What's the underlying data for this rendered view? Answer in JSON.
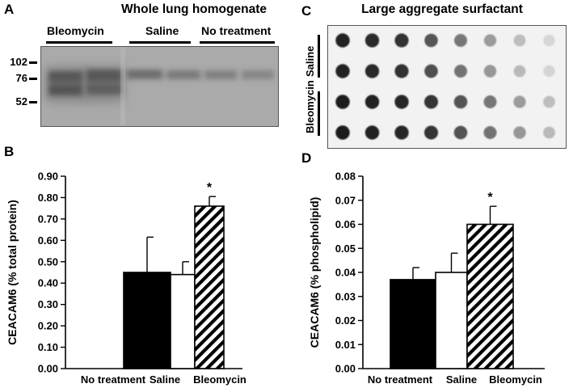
{
  "panels": {
    "a": {
      "letter": "A",
      "title": "Whole lung homogenate",
      "groups": [
        "Bleomycin",
        "Saline",
        "No treatment"
      ],
      "mw_markers": [
        "102",
        "76",
        "52"
      ]
    },
    "b": {
      "letter": "B"
    },
    "c": {
      "letter": "C",
      "title": "Large aggregate surfactant",
      "rows": [
        "Saline",
        "Bleomycin"
      ]
    },
    "d": {
      "letter": "D"
    }
  },
  "chart_data": [
    {
      "type": "bar",
      "categories": [
        "No treatment",
        "Saline",
        "Bleomycin"
      ],
      "values": [
        0.45,
        0.44,
        0.76
      ],
      "errors": [
        0.165,
        0.06,
        0.045
      ],
      "fills": [
        "solid-black",
        "white",
        "diagonal-hatch"
      ],
      "significance": [
        "",
        "",
        "*"
      ],
      "ylabel": "CEACAM6 (% total protein)",
      "ylim": [
        0,
        0.9
      ],
      "yticks": [
        "0.00",
        "0.10",
        "0.20",
        "0.30",
        "0.40",
        "0.50",
        "0.60",
        "0.70",
        "0.80",
        "0.90"
      ]
    },
    {
      "type": "bar",
      "categories": [
        "No treatment",
        "Saline",
        "Bleomycin"
      ],
      "values": [
        0.037,
        0.04,
        0.06
      ],
      "errors": [
        0.005,
        0.008,
        0.0075
      ],
      "fills": [
        "solid-black",
        "white",
        "diagonal-hatch"
      ],
      "significance": [
        "",
        "",
        "*"
      ],
      "ylabel": "CEACAM6 (% phospholipid)",
      "ylim": [
        0,
        0.08
      ],
      "yticks": [
        "0.00",
        "0.01",
        "0.02",
        "0.03",
        "0.04",
        "0.05",
        "0.06",
        "0.07",
        "0.08"
      ]
    }
  ]
}
